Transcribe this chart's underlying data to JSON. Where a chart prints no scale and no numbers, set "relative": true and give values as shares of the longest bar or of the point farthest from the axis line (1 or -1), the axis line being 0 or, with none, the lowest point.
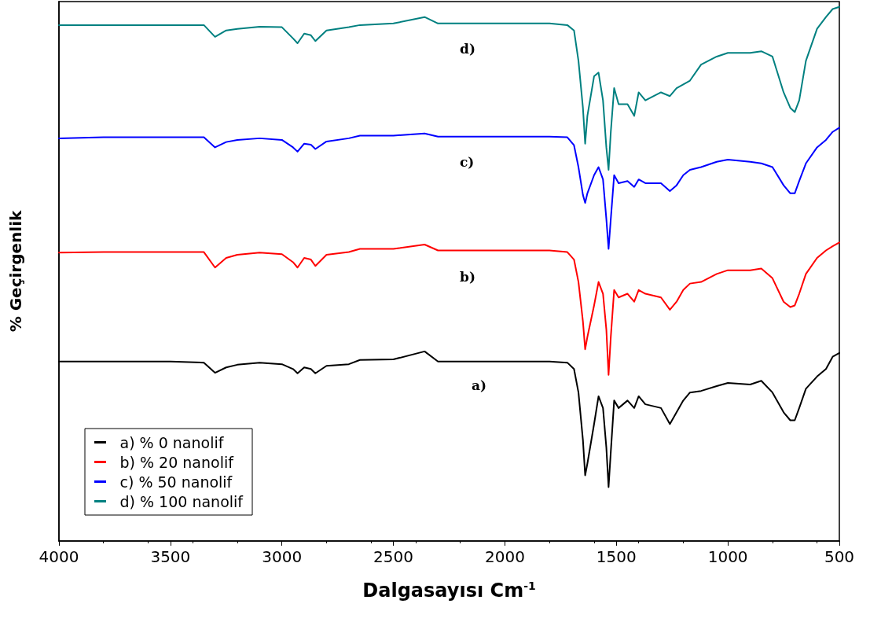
{
  "chart_data": {
    "type": "line",
    "relative": true,
    "xlabel": "Dalgasayısı Cm$^{-1}$",
    "ylabel": "% Geçirgenlik",
    "x": [
      4000,
      3800,
      3500,
      3350,
      3300,
      3250,
      3200,
      3100,
      3000,
      2950,
      2930,
      2900,
      2870,
      2850,
      2800,
      2700,
      2650,
      2500,
      2360,
      2300,
      2000,
      1800,
      1720,
      1690,
      1670,
      1650,
      1640,
      1630,
      1600,
      1580,
      1560,
      1545,
      1535,
      1525,
      1510,
      1490,
      1450,
      1420,
      1400,
      1370,
      1300,
      1260,
      1230,
      1200,
      1170,
      1120,
      1050,
      1000,
      900,
      850,
      800,
      750,
      720,
      700,
      680,
      650,
      600,
      560,
      530,
      500
    ],
    "xlim": [
      4000,
      500
    ],
    "xticks": [
      4000,
      3500,
      3000,
      2500,
      2000,
      1500,
      1000,
      500
    ],
    "series": [
      {
        "name": "a) % 0 nanolif",
        "color": "#000000",
        "values": [
          0.336,
          0.336,
          0.336,
          0.334,
          0.315,
          0.325,
          0.33,
          0.334,
          0.331,
          0.322,
          0.314,
          0.325,
          0.322,
          0.314,
          0.328,
          0.331,
          0.339,
          0.34,
          0.355,
          0.336,
          0.336,
          0.336,
          0.334,
          0.322,
          0.278,
          0.189,
          0.123,
          0.145,
          0.219,
          0.271,
          0.249,
          0.175,
          0.101,
          0.167,
          0.263,
          0.249,
          0.263,
          0.249,
          0.271,
          0.256,
          0.249,
          0.219,
          0.241,
          0.263,
          0.278,
          0.281,
          0.29,
          0.296,
          0.293,
          0.3,
          0.278,
          0.241,
          0.226,
          0.226,
          0.249,
          0.285,
          0.308,
          0.322,
          0.345,
          0.352
        ]
      },
      {
        "name": "b) % 20 nanolif",
        "color": "#ff0000",
        "values": [
          0.54,
          0.541,
          0.541,
          0.541,
          0.512,
          0.53,
          0.536,
          0.54,
          0.537,
          0.522,
          0.512,
          0.53,
          0.527,
          0.515,
          0.536,
          0.541,
          0.547,
          0.547,
          0.555,
          0.544,
          0.544,
          0.544,
          0.541,
          0.527,
          0.485,
          0.411,
          0.359,
          0.382,
          0.441,
          0.485,
          0.463,
          0.396,
          0.311,
          0.382,
          0.47,
          0.456,
          0.463,
          0.448,
          0.47,
          0.463,
          0.456,
          0.433,
          0.448,
          0.47,
          0.482,
          0.485,
          0.5,
          0.507,
          0.507,
          0.51,
          0.492,
          0.448,
          0.438,
          0.441,
          0.463,
          0.5,
          0.53,
          0.544,
          0.552,
          0.559
        ]
      },
      {
        "name": "c) % 50 nanolif",
        "color": "#0000ff",
        "values": [
          0.754,
          0.756,
          0.756,
          0.756,
          0.737,
          0.747,
          0.751,
          0.754,
          0.751,
          0.737,
          0.729,
          0.744,
          0.742,
          0.734,
          0.748,
          0.754,
          0.759,
          0.759,
          0.763,
          0.757,
          0.757,
          0.757,
          0.756,
          0.741,
          0.7,
          0.648,
          0.633,
          0.651,
          0.685,
          0.7,
          0.677,
          0.603,
          0.547,
          0.603,
          0.685,
          0.67,
          0.674,
          0.663,
          0.677,
          0.67,
          0.67,
          0.655,
          0.666,
          0.685,
          0.695,
          0.7,
          0.71,
          0.714,
          0.71,
          0.707,
          0.7,
          0.666,
          0.651,
          0.651,
          0.674,
          0.707,
          0.737,
          0.751,
          0.766,
          0.774
        ]
      },
      {
        "name": "d) % 100 nanolif",
        "color": "#008080",
        "values": [
          0.966,
          0.966,
          0.966,
          0.966,
          0.944,
          0.956,
          0.959,
          0.963,
          0.962,
          0.941,
          0.932,
          0.95,
          0.947,
          0.936,
          0.956,
          0.962,
          0.966,
          0.969,
          0.981,
          0.969,
          0.969,
          0.969,
          0.966,
          0.956,
          0.899,
          0.811,
          0.744,
          0.796,
          0.87,
          0.877,
          0.825,
          0.737,
          0.695,
          0.766,
          0.848,
          0.818,
          0.818,
          0.796,
          0.84,
          0.825,
          0.84,
          0.833,
          0.848,
          0.855,
          0.862,
          0.892,
          0.907,
          0.914,
          0.914,
          0.917,
          0.907,
          0.84,
          0.811,
          0.803,
          0.825,
          0.899,
          0.959,
          0.981,
          0.996,
          1
        ]
      }
    ],
    "annotations": [
      "a)",
      "b)",
      "c)",
      "d)"
    ],
    "legend": "bottom left",
    "grid": false,
    "marker": "none",
    "line_style": "solid"
  }
}
